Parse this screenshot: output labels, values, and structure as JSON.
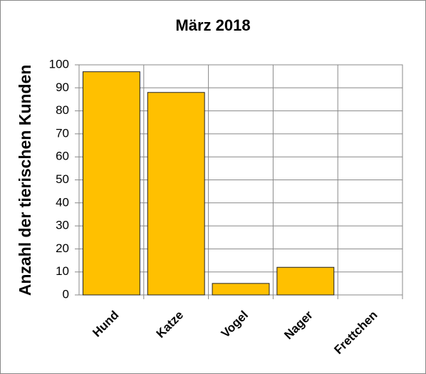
{
  "chart_data": {
    "type": "bar",
    "title": "März 2018",
    "y_label": "Anzahl der tierischen Kunden",
    "categories": [
      "Hund",
      "Katze",
      "Vogel",
      "Nager",
      "Frettchen"
    ],
    "values": [
      97,
      88,
      5,
      12,
      0
    ],
    "color": "#ffc000",
    "ylim": [
      0,
      100
    ],
    "yticks": [
      0,
      10,
      20,
      30,
      40,
      50,
      60,
      70,
      80,
      90,
      100
    ],
    "grid": true
  }
}
